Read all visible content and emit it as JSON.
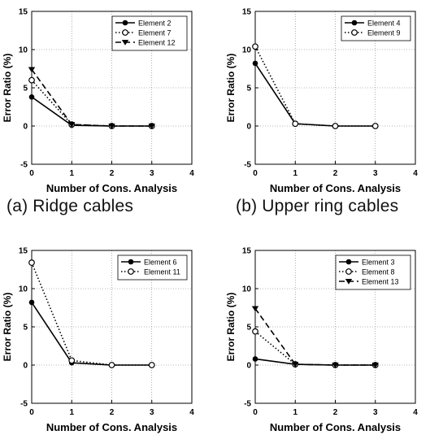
{
  "captions": {
    "a": "(a) Ridge cables",
    "b": "(b) Upper ring cables"
  },
  "chart_data": [
    {
      "type": "line",
      "xlabel": "Number of Cons. Analysis",
      "ylabel": "Error Ratio (%)",
      "xlim": [
        0,
        4
      ],
      "ylim": [
        -5,
        15
      ],
      "xticks": [
        0,
        1,
        2,
        3,
        4
      ],
      "yticks": [
        -5,
        0,
        5,
        10,
        15
      ],
      "grid": true,
      "legend": "top-right",
      "series": [
        {
          "name": "Element 2",
          "style": "solid",
          "marker": "filled-circle",
          "x": [
            0,
            1,
            2,
            3
          ],
          "y": [
            3.8,
            0.1,
            0,
            0
          ]
        },
        {
          "name": "Element 7",
          "style": "dotted",
          "marker": "open-circle",
          "x": [
            0,
            1,
            2,
            3
          ],
          "y": [
            6.0,
            0.2,
            0,
            0
          ]
        },
        {
          "name": "Element 12",
          "style": "dashed",
          "marker": "filled-triangle",
          "x": [
            0,
            1,
            2,
            3
          ],
          "y": [
            7.4,
            0.2,
            0,
            0
          ]
        }
      ]
    },
    {
      "type": "line",
      "xlabel": "Number of Cons. Analysis",
      "ylabel": "Error Ratio (%)",
      "xlim": [
        0,
        4
      ],
      "ylim": [
        -5,
        15
      ],
      "xticks": [
        0,
        1,
        2,
        3,
        4
      ],
      "yticks": [
        -5,
        0,
        5,
        10,
        15
      ],
      "grid": true,
      "legend": "top-right",
      "series": [
        {
          "name": "Element 4",
          "style": "solid",
          "marker": "filled-circle",
          "x": [
            0,
            1,
            2,
            3
          ],
          "y": [
            8.2,
            0.3,
            0,
            0
          ]
        },
        {
          "name": "Element 9",
          "style": "dotted",
          "marker": "open-circle",
          "x": [
            0,
            1,
            2,
            3
          ],
          "y": [
            10.4,
            0.3,
            0,
            0
          ]
        }
      ]
    },
    {
      "type": "line",
      "xlabel": "Number of Cons. Analysis",
      "ylabel": "Error Ratio (%)",
      "xlim": [
        0,
        4
      ],
      "ylim": [
        -5,
        15
      ],
      "xticks": [
        0,
        1,
        2,
        3,
        4
      ],
      "yticks": [
        -5,
        0,
        5,
        10,
        15
      ],
      "grid": true,
      "legend": "top-right",
      "series": [
        {
          "name": "Element 6",
          "style": "solid",
          "marker": "filled-circle",
          "x": [
            0,
            1,
            2,
            3
          ],
          "y": [
            8.2,
            0.3,
            0,
            0
          ]
        },
        {
          "name": "Element 11",
          "style": "dotted",
          "marker": "open-circle",
          "x": [
            0,
            1,
            2,
            3
          ],
          "y": [
            13.4,
            0.6,
            0,
            0
          ]
        }
      ]
    },
    {
      "type": "line",
      "xlabel": "Number of Cons. Analysis",
      "ylabel": "Error Ratio (%)",
      "xlim": [
        0,
        4
      ],
      "ylim": [
        -5,
        15
      ],
      "xticks": [
        0,
        1,
        2,
        3,
        4
      ],
      "yticks": [
        -5,
        0,
        5,
        10,
        15
      ],
      "grid": true,
      "legend": "top-right",
      "series": [
        {
          "name": "Element 3",
          "style": "solid",
          "marker": "filled-circle",
          "x": [
            0,
            1,
            2,
            3
          ],
          "y": [
            0.8,
            0.1,
            0,
            0
          ]
        },
        {
          "name": "Element 8",
          "style": "dotted",
          "marker": "open-circle",
          "x": [
            0,
            1,
            2,
            3
          ],
          "y": [
            4.4,
            0.1,
            0,
            0
          ]
        },
        {
          "name": "Element 13",
          "style": "dashed",
          "marker": "filled-triangle",
          "x": [
            0,
            1,
            2,
            3
          ],
          "y": [
            7.4,
            0.1,
            0,
            0
          ]
        }
      ]
    }
  ]
}
